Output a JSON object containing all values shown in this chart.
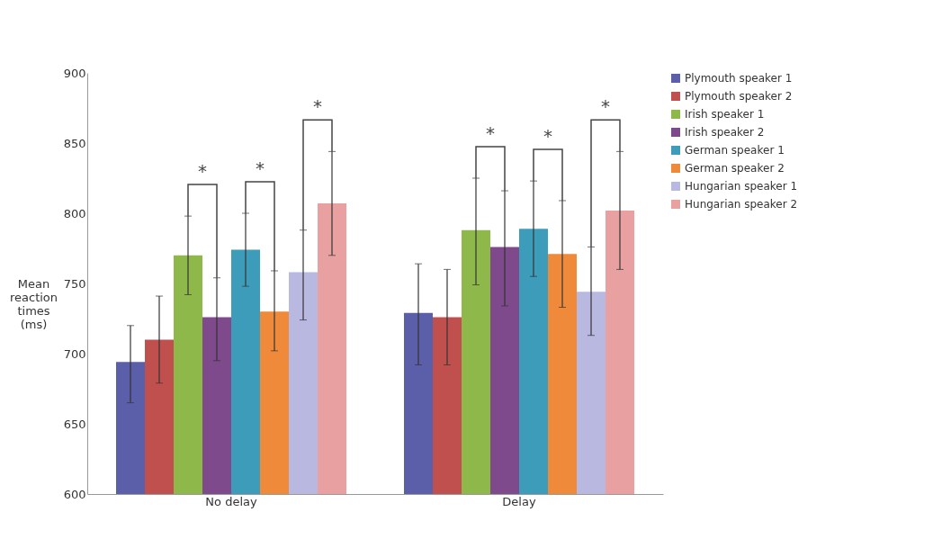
{
  "chart_data": {
    "type": "bar",
    "ylabel": "Mean reaction times (ms)",
    "categories": [
      "No delay",
      "Delay"
    ],
    "series": [
      {
        "name": "Plymouth speaker 1",
        "color": "#5b5ea8",
        "values": [
          694,
          729
        ],
        "errors": [
          [
            665,
            720
          ],
          [
            692,
            764
          ]
        ]
      },
      {
        "name": "Plymouth speaker 2",
        "color": "#c0504d",
        "values": [
          710,
          726
        ],
        "errors": [
          [
            679,
            741
          ],
          [
            692,
            760
          ]
        ]
      },
      {
        "name": "Irish speaker 1",
        "color": "#8fb84a",
        "values": [
          770,
          788
        ],
        "errors": [
          [
            742,
            798
          ],
          [
            749,
            825
          ]
        ]
      },
      {
        "name": "Irish speaker 2",
        "color": "#7e4a8c",
        "values": [
          726,
          776
        ],
        "errors": [
          [
            695,
            754
          ],
          [
            734,
            816
          ]
        ]
      },
      {
        "name": "German speaker 1",
        "color": "#3d9cba",
        "values": [
          774,
          789
        ],
        "errors": [
          [
            748,
            800
          ],
          [
            755,
            823
          ]
        ]
      },
      {
        "name": "German speaker 2",
        "color": "#ef8a3a",
        "values": [
          730,
          771
        ],
        "errors": [
          [
            702,
            759
          ],
          [
            733,
            809
          ]
        ]
      },
      {
        "name": "Hungarian speaker 1",
        "color": "#b8b8e0",
        "values": [
          758,
          744
        ],
        "errors": [
          [
            724,
            788
          ],
          [
            713,
            776
          ]
        ]
      },
      {
        "name": "Hungarian speaker 2",
        "color": "#e8a0a0",
        "values": [
          807,
          802
        ],
        "errors": [
          [
            770,
            844
          ],
          [
            760,
            844
          ]
        ]
      }
    ],
    "annotations": [
      "*",
      "*",
      "*",
      "*",
      "*",
      "*"
    ],
    "ylim": [
      600,
      900
    ],
    "yticks": [
      600,
      650,
      700,
      750,
      800,
      850,
      900
    ],
    "legend": "right"
  }
}
